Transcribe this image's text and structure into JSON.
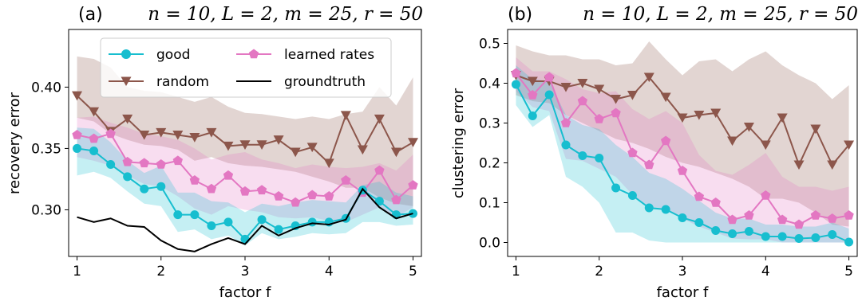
{
  "chart_data": [
    {
      "type": "line",
      "panel_tag": "(a)",
      "title": "n = 10, L = 2, m = 25, r = 50",
      "xlabel": "factor f",
      "ylabel": "recovery error",
      "xlim": [
        0.9,
        5.1
      ],
      "ylim": [
        0.262,
        0.447
      ],
      "xticks": [
        1,
        2,
        3,
        4,
        5
      ],
      "yticks": [
        0.3,
        0.35,
        0.4
      ],
      "ytick_labels": [
        "0.30",
        "0.35",
        "0.40"
      ],
      "legend_position": "upper center",
      "legend": [
        {
          "series": "good",
          "label": "good"
        },
        {
          "series": "learned",
          "label": "learned rates"
        },
        {
          "series": "random",
          "label": "random"
        },
        {
          "series": "gt",
          "label": "groundtruth"
        }
      ],
      "x": [
        1.0,
        1.2,
        1.4,
        1.6,
        1.8,
        2.0,
        2.2,
        2.4,
        2.6,
        2.8,
        3.0,
        3.2,
        3.4,
        3.6,
        3.8,
        4.0,
        4.2,
        4.4,
        4.6,
        4.8,
        5.0
      ],
      "series": [
        {
          "key": "random",
          "name": "random",
          "color": "#8c564b",
          "marker": "triangle-down",
          "values": [
            0.393,
            0.38,
            0.364,
            0.374,
            0.361,
            0.363,
            0.361,
            0.359,
            0.363,
            0.352,
            0.353,
            0.353,
            0.357,
            0.347,
            0.351,
            0.338,
            0.377,
            0.349,
            0.374,
            0.347,
            0.355
          ],
          "band_low": [
            0.375,
            0.372,
            0.362,
            0.357,
            0.353,
            0.352,
            0.349,
            0.34,
            0.343,
            0.338,
            0.336,
            0.335,
            0.333,
            0.331,
            0.327,
            0.323,
            0.318,
            0.318,
            0.31,
            0.305,
            0.303
          ],
          "band_high": [
            0.425,
            0.423,
            0.416,
            0.4,
            0.397,
            0.396,
            0.392,
            0.388,
            0.392,
            0.384,
            0.379,
            0.378,
            0.376,
            0.374,
            0.376,
            0.374,
            0.378,
            0.38,
            0.4,
            0.385,
            0.408
          ]
        },
        {
          "key": "learned",
          "name": "learned rates",
          "color": "#e377c2",
          "marker": "pentagon",
          "values": [
            0.361,
            0.358,
            0.362,
            0.339,
            0.338,
            0.337,
            0.34,
            0.324,
            0.317,
            0.328,
            0.315,
            0.316,
            0.311,
            0.306,
            0.312,
            0.311,
            0.324,
            0.314,
            0.332,
            0.308,
            0.32
          ],
          "band_low": [
            0.343,
            0.34,
            0.336,
            0.328,
            0.321,
            0.319,
            0.311,
            0.301,
            0.296,
            0.303,
            0.3,
            0.298,
            0.294,
            0.293,
            0.294,
            0.291,
            0.29,
            0.296,
            0.302,
            0.294,
            0.302
          ],
          "band_high": [
            0.375,
            0.376,
            0.371,
            0.367,
            0.362,
            0.36,
            0.357,
            0.35,
            0.341,
            0.345,
            0.347,
            0.341,
            0.338,
            0.334,
            0.337,
            0.335,
            0.334,
            0.335,
            0.338,
            0.332,
            0.345
          ]
        },
        {
          "key": "good",
          "name": "good",
          "color": "#17becf",
          "marker": "circle",
          "values": [
            0.35,
            0.348,
            0.337,
            0.327,
            0.317,
            0.319,
            0.296,
            0.296,
            0.287,
            0.29,
            0.276,
            0.292,
            0.284,
            0.287,
            0.29,
            0.29,
            0.293,
            0.316,
            0.307,
            0.296,
            0.297
          ],
          "band_low": [
            0.328,
            0.331,
            0.326,
            0.315,
            0.305,
            0.303,
            0.282,
            0.284,
            0.276,
            0.279,
            0.271,
            0.281,
            0.276,
            0.278,
            0.281,
            0.28,
            0.281,
            0.29,
            0.29,
            0.287,
            0.288
          ],
          "band_high": [
            0.367,
            0.366,
            0.355,
            0.34,
            0.33,
            0.336,
            0.314,
            0.314,
            0.307,
            0.306,
            0.298,
            0.305,
            0.303,
            0.306,
            0.308,
            0.307,
            0.306,
            0.32,
            0.323,
            0.314,
            0.311
          ]
        },
        {
          "key": "gt",
          "name": "groundtruth",
          "color": "#000000",
          "marker": "none",
          "values": [
            0.294,
            0.29,
            0.293,
            0.287,
            0.286,
            0.275,
            0.268,
            0.266,
            0.272,
            0.277,
            0.272,
            0.287,
            0.279,
            0.285,
            0.289,
            0.288,
            0.292,
            0.317,
            0.302,
            0.293,
            0.297
          ]
        }
      ]
    },
    {
      "type": "line",
      "panel_tag": "(b)",
      "title": "n = 10, L = 2, m = 25, r = 50",
      "xlabel": "factor f",
      "ylabel": "clustering error",
      "xlim": [
        0.9,
        5.1
      ],
      "ylim": [
        -0.035,
        0.535
      ],
      "xticks": [
        1,
        2,
        3,
        4,
        5
      ],
      "yticks": [
        0.0,
        0.1,
        0.2,
        0.3,
        0.4,
        0.5
      ],
      "ytick_labels": [
        "0.0",
        "0.1",
        "0.2",
        "0.3",
        "0.4",
        "0.5"
      ],
      "x": [
        1.0,
        1.2,
        1.4,
        1.6,
        1.8,
        2.0,
        2.2,
        2.4,
        2.6,
        2.8,
        3.0,
        3.2,
        3.4,
        3.6,
        3.8,
        4.0,
        4.2,
        4.4,
        4.6,
        4.8,
        5.0
      ],
      "series": [
        {
          "key": "random",
          "name": "random",
          "color": "#8c564b",
          "marker": "triangle-down",
          "values": [
            0.42,
            0.405,
            0.405,
            0.39,
            0.4,
            0.385,
            0.36,
            0.37,
            0.415,
            0.365,
            0.313,
            0.32,
            0.325,
            0.255,
            0.29,
            0.245,
            0.313,
            0.195,
            0.285,
            0.195,
            0.245
          ],
          "band_low": [
            0.37,
            0.355,
            0.35,
            0.32,
            0.3,
            0.28,
            0.26,
            0.25,
            0.235,
            0.215,
            0.2,
            0.19,
            0.175,
            0.16,
            0.14,
            0.11,
            0.11,
            0.1,
            0.075,
            0.045,
            0.04
          ],
          "band_high": [
            0.495,
            0.48,
            0.47,
            0.47,
            0.46,
            0.46,
            0.445,
            0.45,
            0.505,
            0.46,
            0.42,
            0.455,
            0.46,
            0.43,
            0.46,
            0.48,
            0.445,
            0.42,
            0.4,
            0.36,
            0.395
          ]
        },
        {
          "key": "learned",
          "name": "learned rates",
          "color": "#e377c2",
          "marker": "pentagon",
          "values": [
            0.425,
            0.37,
            0.415,
            0.3,
            0.355,
            0.31,
            0.325,
            0.225,
            0.195,
            0.255,
            0.18,
            0.115,
            0.1,
            0.057,
            0.068,
            0.118,
            0.057,
            0.045,
            0.068,
            0.06,
            0.068
          ],
          "band_low": [
            0.38,
            0.34,
            0.33,
            0.21,
            0.205,
            0.185,
            0.165,
            0.12,
            0.09,
            0.085,
            0.06,
            0.04,
            0.025,
            0.01,
            0.008,
            0.008,
            0.0,
            0.0,
            0.0,
            0.0,
            0.0
          ],
          "band_high": [
            0.465,
            0.43,
            0.43,
            0.41,
            0.385,
            0.375,
            0.38,
            0.335,
            0.31,
            0.33,
            0.3,
            0.22,
            0.18,
            0.17,
            0.195,
            0.225,
            0.165,
            0.14,
            0.14,
            0.13,
            0.14
          ]
        },
        {
          "key": "good",
          "name": "good",
          "color": "#17becf",
          "marker": "circle",
          "values": [
            0.397,
            0.318,
            0.371,
            0.245,
            0.218,
            0.212,
            0.137,
            0.118,
            0.087,
            0.083,
            0.062,
            0.05,
            0.03,
            0.022,
            0.028,
            0.015,
            0.015,
            0.01,
            0.012,
            0.02,
            0.001
          ],
          "band_low": [
            0.345,
            0.29,
            0.32,
            0.165,
            0.14,
            0.1,
            0.025,
            0.025,
            0.005,
            0.0,
            0.0,
            0.0,
            0.0,
            0.0,
            0.0,
            0.0,
            0.0,
            0.0,
            0.0,
            0.0,
            0.0
          ],
          "band_high": [
            0.445,
            0.41,
            0.405,
            0.32,
            0.295,
            0.285,
            0.245,
            0.215,
            0.175,
            0.16,
            0.135,
            0.105,
            0.075,
            0.06,
            0.06,
            0.045,
            0.045,
            0.04,
            0.04,
            0.05,
            0.035
          ]
        }
      ]
    }
  ]
}
